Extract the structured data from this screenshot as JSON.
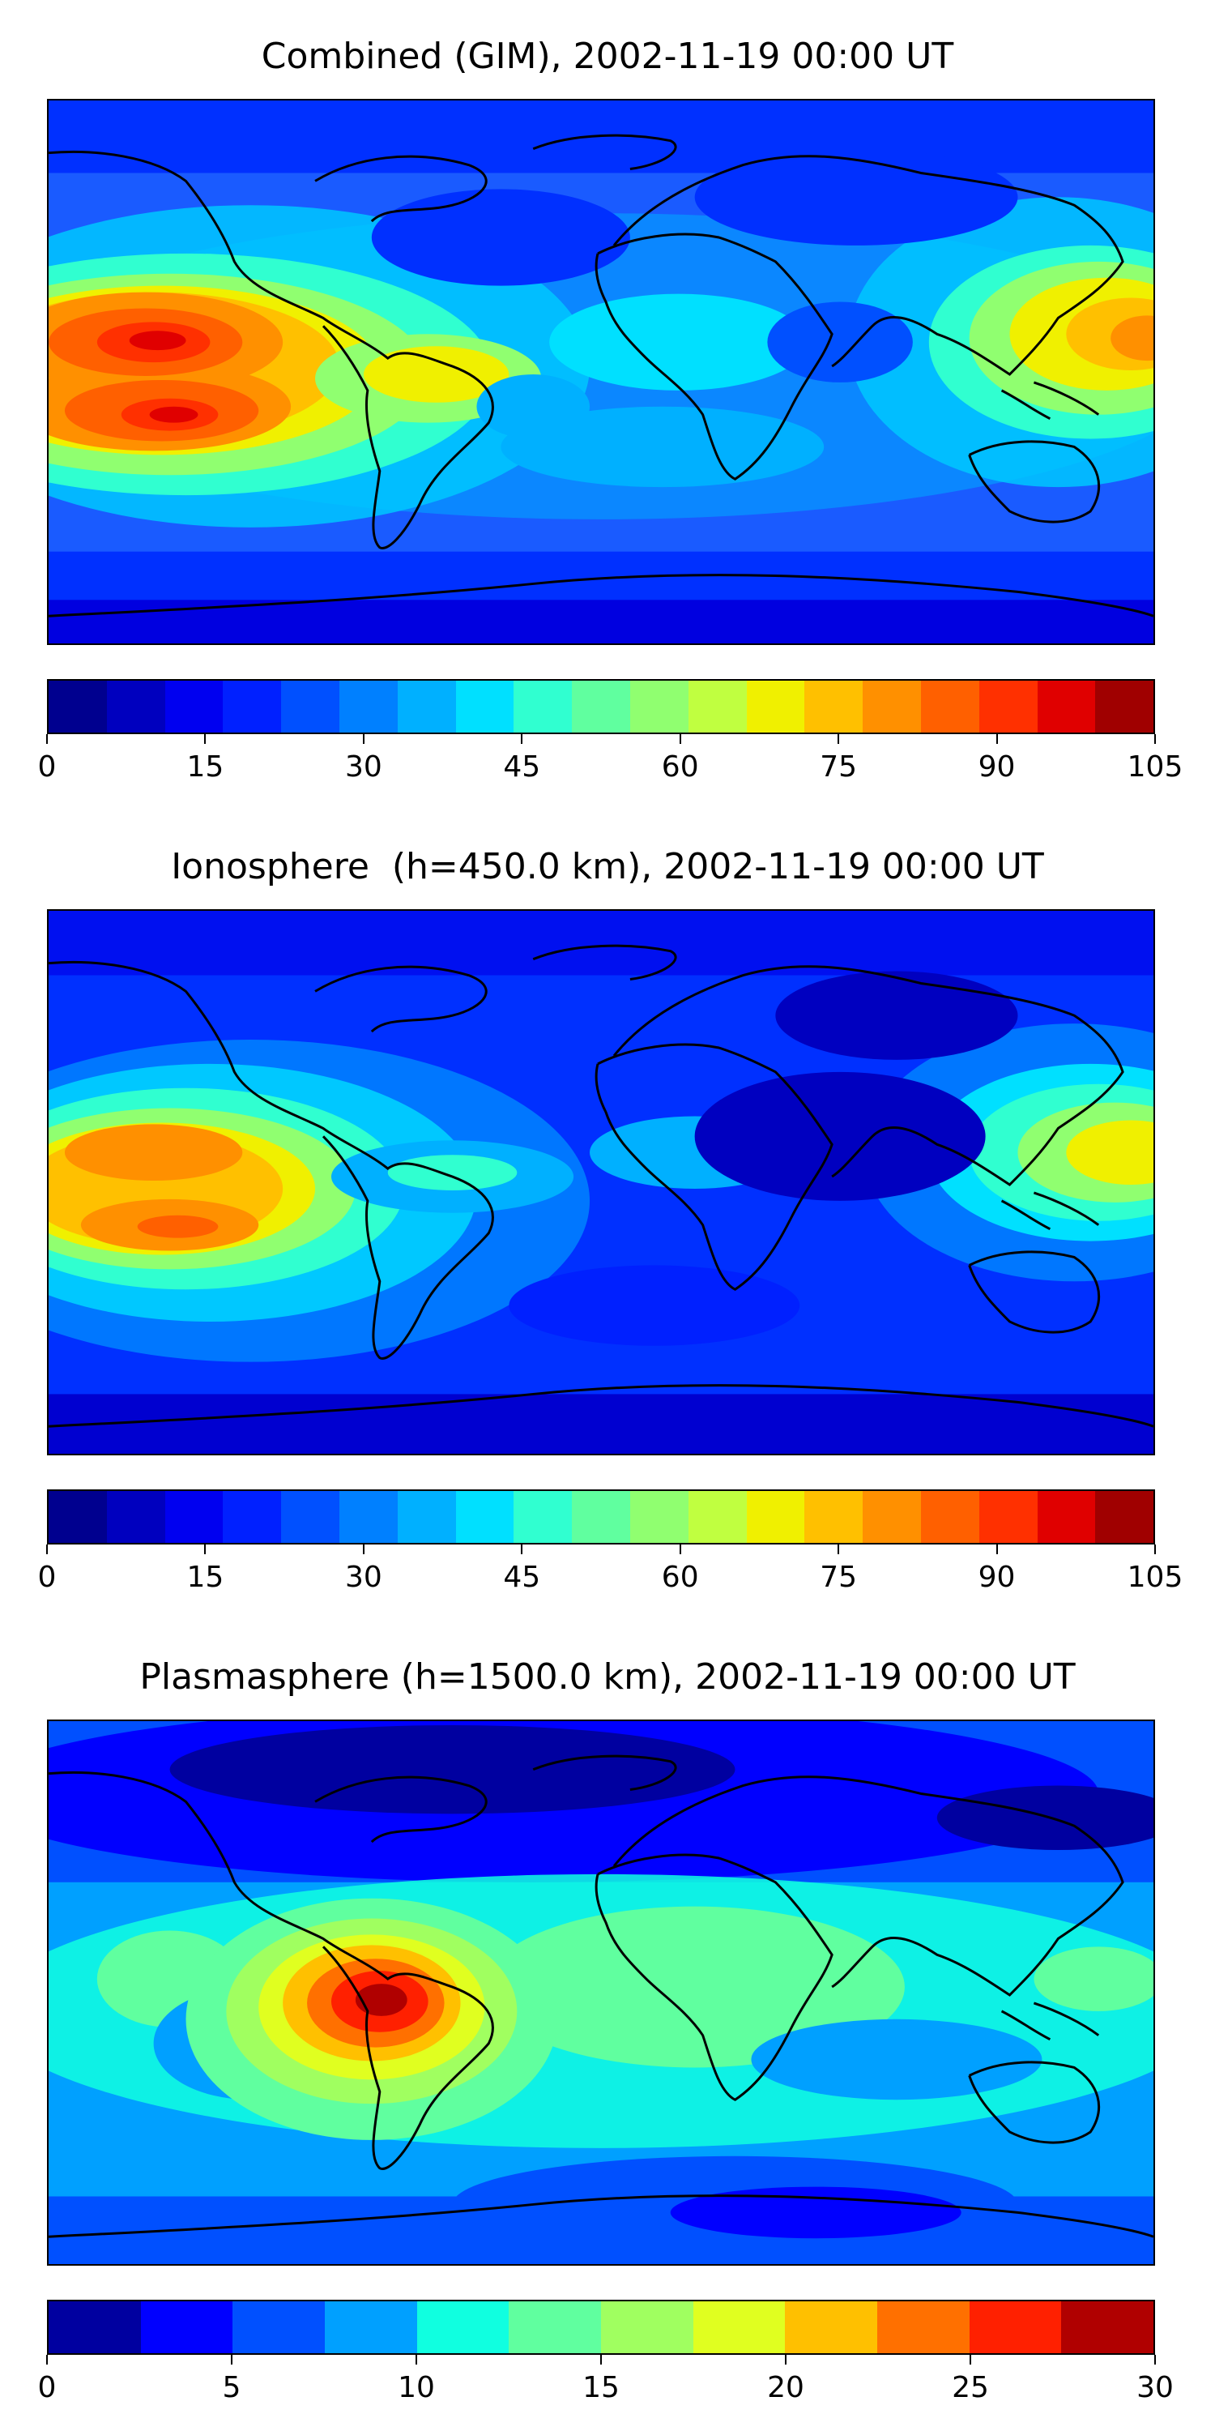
{
  "figure": {
    "panels": [
      {
        "id": "combined",
        "title": "Combined (GIM), 2002-11-19 00:00 UT",
        "colorbar_ticks": [
          "0",
          "15",
          "30",
          "45",
          "60",
          "75",
          "90",
          "105"
        ],
        "colorbar_colors": [
          "#00008f",
          "#0000bf",
          "#0000f0",
          "#0020ff",
          "#0050ff",
          "#0080ff",
          "#00b0ff",
          "#00e0ff",
          "#30ffd0",
          "#60ff9f",
          "#90ff70",
          "#c0ff40",
          "#f0f000",
          "#ffc000",
          "#ff9000",
          "#ff6000",
          "#ff3000",
          "#e00000",
          "#a00000"
        ]
      },
      {
        "id": "ionosphere",
        "title": "Ionosphere  (h=450.0 km), 2002-11-19 00:00 UT",
        "colorbar_ticks": [
          "0",
          "15",
          "30",
          "45",
          "60",
          "75",
          "90",
          "105"
        ],
        "colorbar_colors": [
          "#00008f",
          "#0000bf",
          "#0000f0",
          "#0020ff",
          "#0050ff",
          "#0080ff",
          "#00b0ff",
          "#00e0ff",
          "#30ffd0",
          "#60ff9f",
          "#90ff70",
          "#c0ff40",
          "#f0f000",
          "#ffc000",
          "#ff9000",
          "#ff6000",
          "#ff3000",
          "#e00000",
          "#a00000"
        ]
      },
      {
        "id": "plasmasphere",
        "title": "Plasmasphere (h=1500.0 km), 2002-11-19 00:00 UT",
        "colorbar_ticks": [
          "0",
          "5",
          "10",
          "15",
          "20",
          "25",
          "30"
        ],
        "colorbar_colors": [
          "#0000a0",
          "#0000ff",
          "#0050ff",
          "#00a0ff",
          "#10ffe0",
          "#60ff9f",
          "#a0ff60",
          "#e0ff20",
          "#ffc000",
          "#ff7000",
          "#ff2000",
          "#b00000"
        ]
      }
    ]
  },
  "chart_data": [
    {
      "type": "heatmap",
      "title": "Combined (GIM), 2002-11-19 00:00 UT",
      "projection": "global lon/lat map with coastlines",
      "colorbar": {
        "min": 0,
        "max": 105,
        "levels": 19,
        "ticks": [
          0,
          15,
          30,
          45,
          60,
          75,
          90,
          105
        ]
      },
      "features": [
        {
          "lon": -150,
          "lat": 10,
          "value": 95
        },
        {
          "lon": -145,
          "lat": -12,
          "value": 92
        },
        {
          "lon": 170,
          "lat": 5,
          "value": 85
        },
        {
          "lon": -60,
          "lat": -5,
          "value": 60
        },
        {
          "lon": 0,
          "lat": 60,
          "value": 10
        },
        {
          "lon": 60,
          "lat": 30,
          "value": 25
        }
      ]
    },
    {
      "type": "heatmap",
      "title": "Ionosphere  (h=450.0 km), 2002-11-19 00:00 UT",
      "projection": "global lon/lat map with coastlines",
      "colorbar": {
        "min": 0,
        "max": 105,
        "levels": 19,
        "ticks": [
          0,
          15,
          30,
          45,
          60,
          75,
          90,
          105
        ]
      },
      "features": [
        {
          "lon": -150,
          "lat": 10,
          "value": 82
        },
        {
          "lon": -145,
          "lat": -12,
          "value": 85
        },
        {
          "lon": 170,
          "lat": 5,
          "value": 68
        },
        {
          "lon": 40,
          "lat": 20,
          "value": 5
        },
        {
          "lon": 100,
          "lat": 55,
          "value": 5
        }
      ]
    },
    {
      "type": "heatmap",
      "title": "Plasmasphere (h=1500.0 km), 2002-11-19 00:00 UT",
      "projection": "global lon/lat map with coastlines",
      "colorbar": {
        "min": 0,
        "max": 30,
        "levels": 12,
        "ticks": [
          0,
          5,
          10,
          15,
          20,
          25,
          30
        ]
      },
      "features": [
        {
          "lon": -70,
          "lat": -10,
          "value": 30
        },
        {
          "lon": -130,
          "lat": -15,
          "value": 7
        },
        {
          "lon": 20,
          "lat": 0,
          "value": 15
        },
        {
          "lon": 0,
          "lat": 70,
          "value": 3
        },
        {
          "lon": 60,
          "lat": -65,
          "value": 5
        }
      ]
    }
  ]
}
